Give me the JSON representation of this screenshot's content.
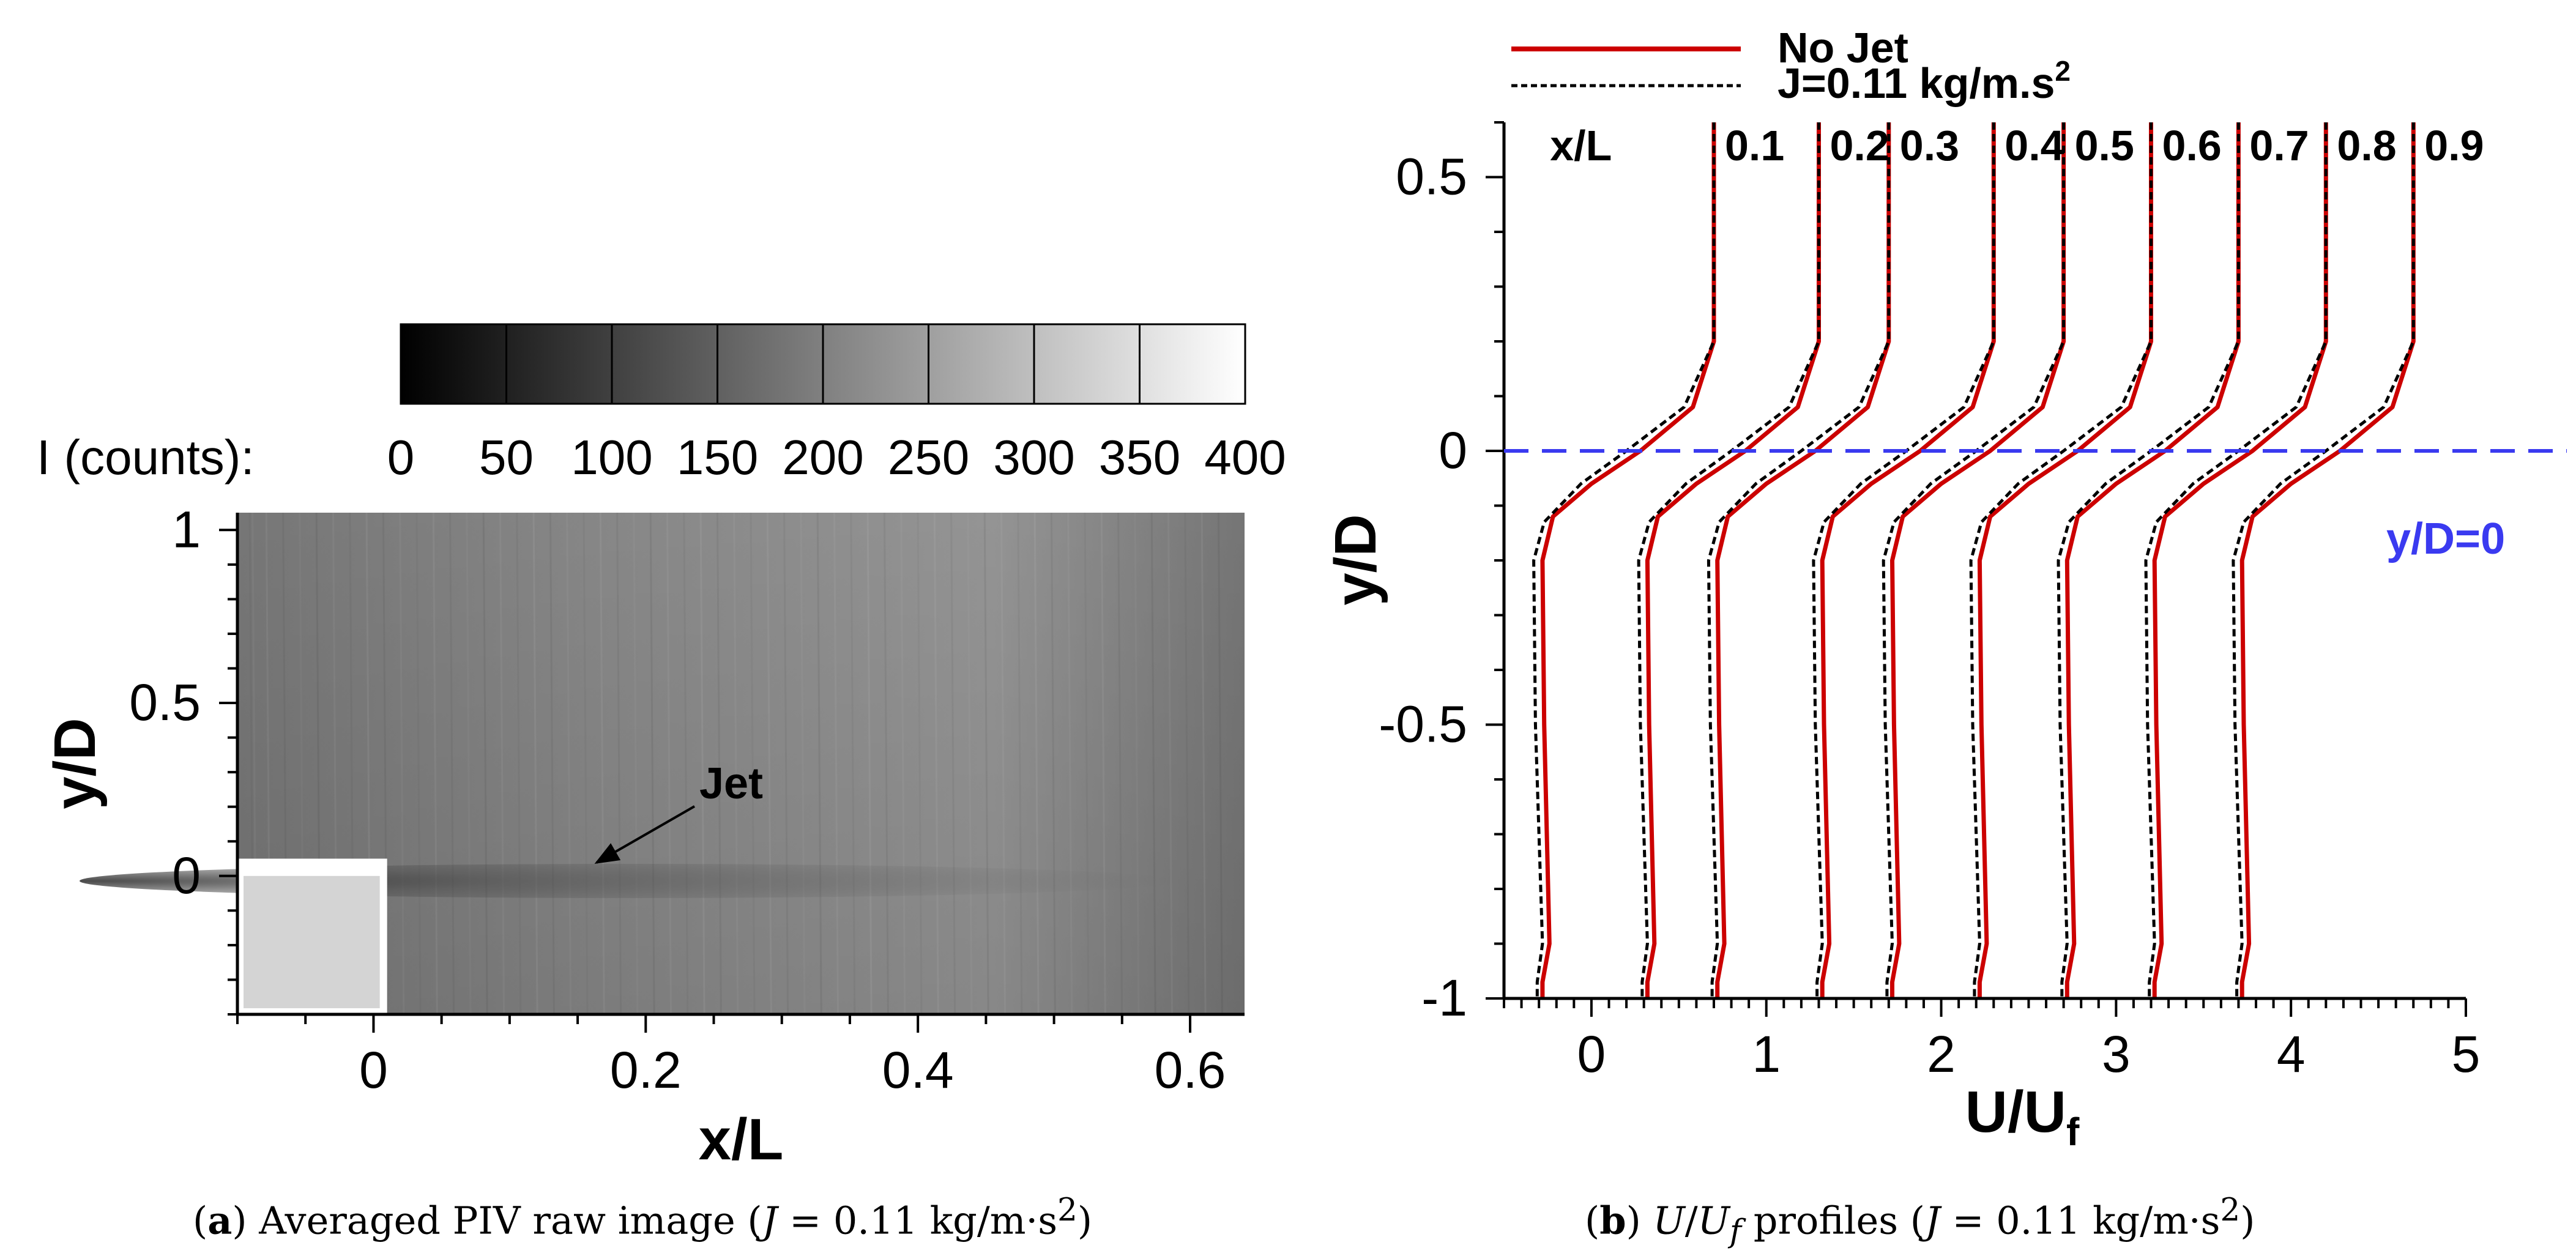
{
  "chart_data": [
    {
      "type": "heatmap",
      "panel": "a",
      "description_caption": {
        "tag": "a",
        "text": "Averaged PIV raw image (",
        "j_expr": "J",
        "eq": " = 0.11  kg/m·s",
        "sup": "2",
        "close": ")"
      },
      "colorbar": {
        "title": "I (counts):",
        "ticks": [
          "0",
          "50",
          "100",
          "150",
          "200",
          "250",
          "300",
          "350",
          "400"
        ],
        "range": [
          0,
          400
        ],
        "levels": 8
      },
      "xlabel": "x/L",
      "ylabel": "y/D",
      "xlim": [
        -0.1,
        0.64
      ],
      "ylim": [
        -0.4,
        1.05
      ],
      "xticks": [
        {
          "value": 0,
          "label": "0"
        },
        {
          "value": 0.2,
          "label": "0.2"
        },
        {
          "value": 0.4,
          "label": "0.4"
        },
        {
          "value": 0.6,
          "label": "0.6"
        }
      ],
      "yticks": [
        {
          "value": 0,
          "label": "0"
        },
        {
          "value": 0.5,
          "label": "0.5"
        },
        {
          "value": 1,
          "label": "1"
        }
      ],
      "model": {
        "x": [
          -0.1,
          0.01
        ],
        "y": [
          -0.4,
          0.05
        ]
      },
      "annotation": {
        "text": "Jet",
        "point": [
          0.165,
          0.01
        ],
        "text_at": [
          0.235,
          0.62
        ]
      }
    },
    {
      "type": "line",
      "panel": "b",
      "description_caption": {
        "tag": "b",
        "u": "U",
        "slash": "/",
        "uf": "U",
        "uf_sub": "f",
        "mid": " profiles (",
        "j_expr": "J",
        "eq": " = 0.11  kg/m·s",
        "sup": "2",
        "close": ")"
      },
      "xlabel": "U/U",
      "xlabel_sub": "f",
      "ylabel": "y/D",
      "xlim": [
        -0.5,
        5
      ],
      "ylim": [
        -1,
        0.6
      ],
      "xticks": [
        "0",
        "1",
        "2",
        "3",
        "4",
        "5"
      ],
      "yticks": [
        {
          "value": -1,
          "label": "-1"
        },
        {
          "value": -0.5,
          "label": "-0.5"
        },
        {
          "value": 0,
          "label": "0"
        },
        {
          "value": 0.5,
          "label": "0.5"
        }
      ],
      "legend": [
        {
          "name": "No Jet",
          "color": "#cc0000",
          "style": "solid"
        },
        {
          "name": "J=0.11 kg/m.s",
          "sup": "2",
          "color": "#000000",
          "style": "dashed"
        }
      ],
      "station_header": "x/L",
      "stations": [
        {
          "label": "0.1",
          "offset": 0.0
        },
        {
          "label": "0.2",
          "offset": 0.6
        },
        {
          "label": "0.3",
          "offset": 1.0
        },
        {
          "label": "0.4",
          "offset": 1.6
        },
        {
          "label": "0.5",
          "offset": 2.0
        },
        {
          "label": "0.6",
          "offset": 2.5
        },
        {
          "label": "0.7",
          "offset": 3.0
        },
        {
          "label": "0.8",
          "offset": 3.5
        },
        {
          "label": "0.9",
          "offset": 4.0
        }
      ],
      "reference_line": {
        "y": 0,
        "label": "y/D=0",
        "color": "#3a3af0"
      },
      "profile_shapes": {
        "No Jet": [
          {
            "y": 0.6,
            "u": 0.7
          },
          {
            "y": 0.2,
            "u": 0.7
          },
          {
            "y": 0.08,
            "u": 0.58
          },
          {
            "y": 0.0,
            "u": 0.28
          },
          {
            "y": -0.06,
            "u": 0.0
          },
          {
            "y": -0.12,
            "u": -0.22
          },
          {
            "y": -0.2,
            "u": -0.28
          },
          {
            "y": -0.5,
            "u": -0.27
          },
          {
            "y": -0.9,
            "u": -0.24
          },
          {
            "y": -0.97,
            "u": -0.28
          },
          {
            "y": -1.0,
            "u": -0.28
          }
        ],
        "J=0.11 kg/m.s2": [
          {
            "y": 0.6,
            "u": 0.7
          },
          {
            "y": 0.2,
            "u": 0.7
          },
          {
            "y": 0.08,
            "u": 0.53
          },
          {
            "y": 0.0,
            "u": 0.2
          },
          {
            "y": -0.06,
            "u": -0.06
          },
          {
            "y": -0.13,
            "u": -0.27
          },
          {
            "y": -0.2,
            "u": -0.33
          },
          {
            "y": -0.5,
            "u": -0.32
          },
          {
            "y": -0.9,
            "u": -0.28
          },
          {
            "y": -0.97,
            "u": -0.31
          },
          {
            "y": -1.0,
            "u": -0.31
          }
        ]
      }
    }
  ]
}
